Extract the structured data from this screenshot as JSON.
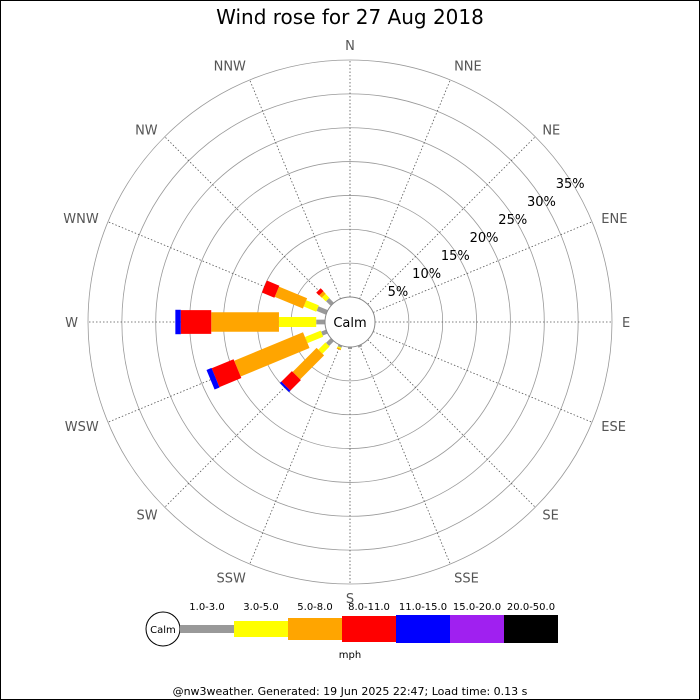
{
  "chart_data": {
    "type": "wind-rose",
    "title": "Wind rose for 27 Aug 2018",
    "directions": [
      "N",
      "NNE",
      "NE",
      "ENE",
      "E",
      "ESE",
      "SE",
      "SSE",
      "S",
      "SSW",
      "SW",
      "WSW",
      "W",
      "WNW",
      "NW",
      "NNW"
    ],
    "ring_labels": [
      "5%",
      "10%",
      "15%",
      "20%",
      "25%",
      "30%",
      "35%"
    ],
    "radial_max": 35,
    "calm_label": "Calm",
    "speed_bins": [
      {
        "label": "1.0-3.0",
        "color": "#999999"
      },
      {
        "label": "3.0-5.0",
        "color": "#ffff00"
      },
      {
        "label": "5.0-8.0",
        "color": "#ffa500"
      },
      {
        "label": "8.0-11.0",
        "color": "#ff0000"
      },
      {
        "label": "11.0-15.0",
        "color": "#0000ff"
      },
      {
        "label": "15.0-20.0",
        "color": "#a020f0"
      },
      {
        "label": "20.0-50.0",
        "color": "#000000"
      }
    ],
    "series": [
      {
        "direction": "SSE",
        "segments": [
          0.3
        ]
      },
      {
        "direction": "S",
        "segments": [
          0.3
        ]
      },
      {
        "direction": "SSW",
        "segments": [
          0.3,
          0.2,
          0.2
        ]
      },
      {
        "direction": "SW",
        "segments": [
          1.0,
          1.5,
          5.0,
          2.2,
          0.3
        ]
      },
      {
        "direction": "WSW",
        "segments": [
          0.8,
          2.5,
          11.0,
          3.5,
          0.8
        ]
      },
      {
        "direction": "W",
        "segments": [
          1.3,
          5.5,
          10.0,
          4.5,
          0.8
        ]
      },
      {
        "direction": "WNW",
        "segments": [
          1.5,
          2.0,
          4.5,
          2.0
        ]
      },
      {
        "direction": "NW",
        "segments": [
          1.0,
          0.8,
          0.5,
          0.6
        ]
      }
    ],
    "legend_unit": "mph"
  },
  "footer": "@nw3weather. Generated: 19 Jun 2025 22:47; Load time: 0.13 s"
}
